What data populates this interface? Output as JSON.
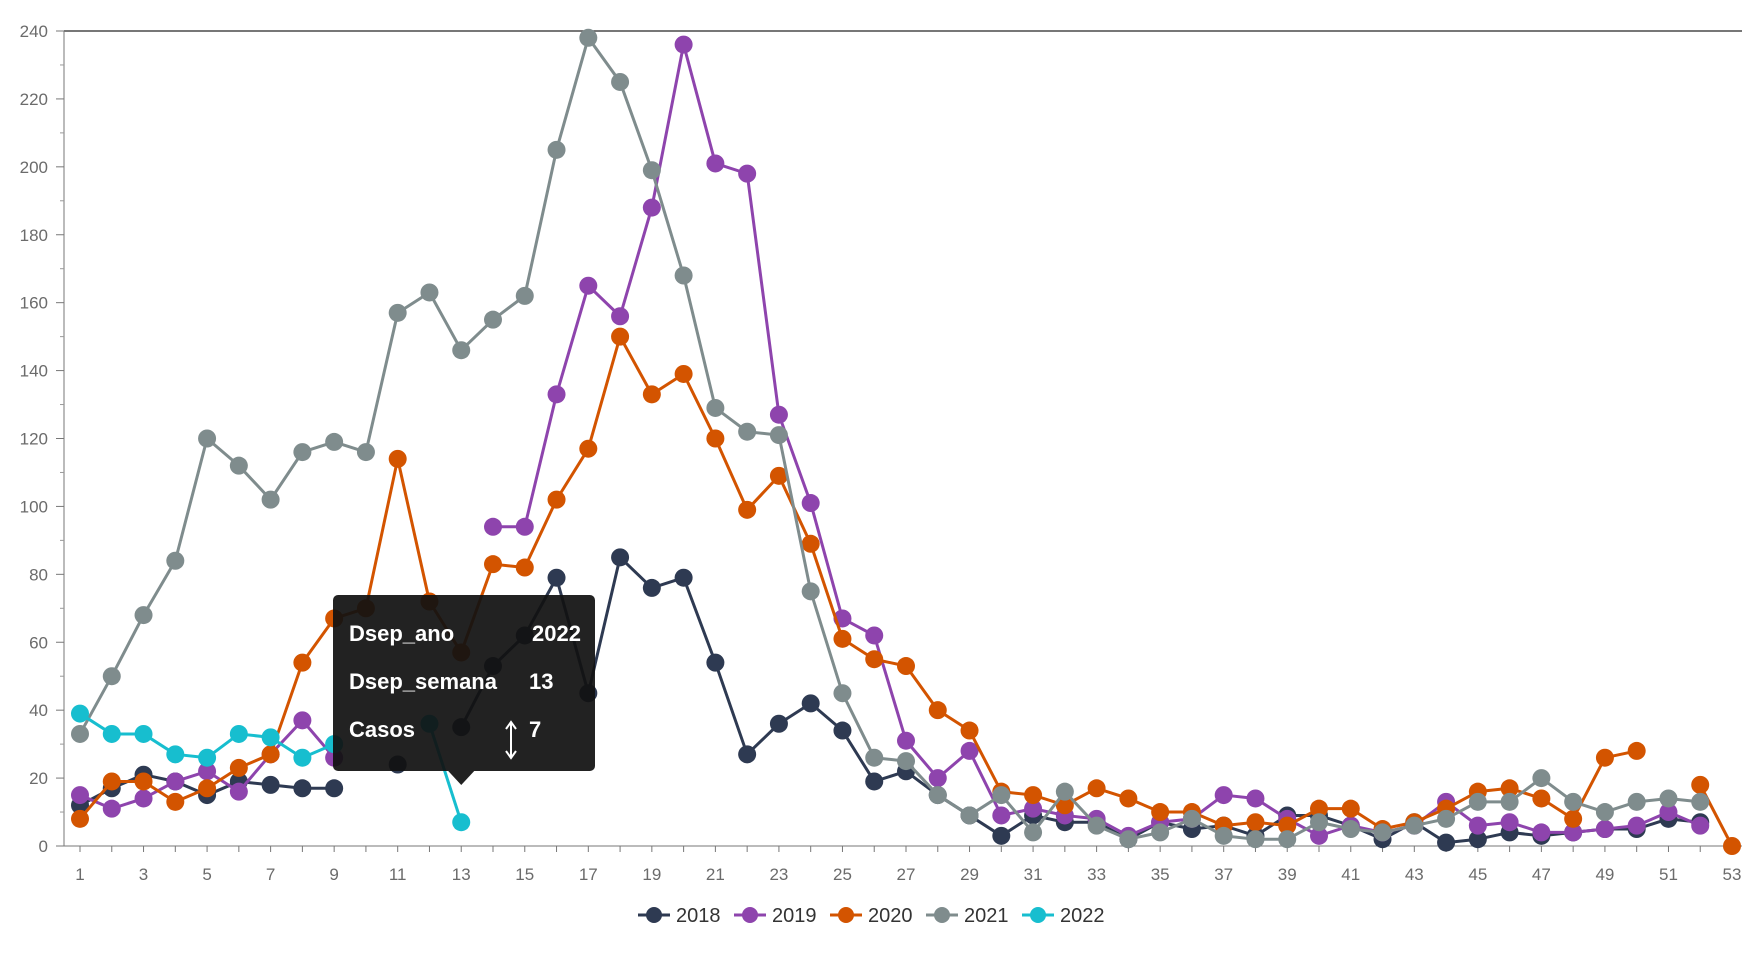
{
  "chart_data": {
    "type": "line",
    "title": "",
    "xlabel": "",
    "ylabel": "",
    "x": [
      1,
      2,
      3,
      4,
      5,
      6,
      7,
      8,
      9,
      10,
      11,
      12,
      13,
      14,
      15,
      16,
      17,
      18,
      19,
      20,
      21,
      22,
      23,
      24,
      25,
      26,
      27,
      28,
      29,
      30,
      31,
      32,
      33,
      34,
      35,
      36,
      37,
      38,
      39,
      40,
      41,
      42,
      43,
      44,
      45,
      46,
      47,
      48,
      49,
      50,
      51,
      52,
      53
    ],
    "x_tick_labels": [
      "1",
      "3",
      "5",
      "7",
      "9",
      "11",
      "13",
      "15",
      "17",
      "19",
      "21",
      "23",
      "25",
      "27",
      "29",
      "31",
      "33",
      "35",
      "37",
      "39",
      "41",
      "43",
      "45",
      "47",
      "49",
      "51",
      "53"
    ],
    "xlim": [
      1,
      53
    ],
    "ylim": [
      0,
      240
    ],
    "y_ticks": [
      0,
      20,
      40,
      60,
      80,
      100,
      120,
      140,
      160,
      180,
      200,
      220,
      240
    ],
    "grid": false,
    "legend_position": "bottom-center",
    "series": [
      {
        "name": "2018",
        "color": "#2e3a52",
        "values": [
          12,
          17,
          21,
          19,
          15,
          19,
          18,
          17,
          17,
          null,
          24,
          null,
          35,
          53,
          62,
          79,
          45,
          85,
          76,
          79,
          54,
          27,
          36,
          42,
          34,
          19,
          22,
          15,
          9,
          3,
          9,
          7,
          7,
          2,
          7,
          5,
          6,
          3,
          9,
          9,
          6,
          2,
          7,
          1,
          2,
          4,
          3,
          4,
          5,
          5,
          8,
          7,
          null
        ]
      },
      {
        "name": "2019",
        "color": "#8e44ad",
        "values": [
          15,
          11,
          14,
          19,
          22,
          16,
          27,
          37,
          26,
          null,
          null,
          null,
          null,
          94,
          94,
          133,
          165,
          156,
          188,
          236,
          201,
          198,
          127,
          101,
          67,
          62,
          31,
          20,
          28,
          9,
          11,
          9,
          8,
          3,
          7,
          8,
          15,
          14,
          8,
          3,
          6,
          4,
          6,
          13,
          6,
          7,
          4,
          4,
          5,
          6,
          10,
          6,
          null
        ]
      },
      {
        "name": "2020",
        "color": "#d35400",
        "values": [
          8,
          19,
          19,
          13,
          17,
          23,
          27,
          54,
          67,
          70,
          114,
          72,
          57,
          83,
          82,
          102,
          117,
          150,
          133,
          139,
          120,
          99,
          109,
          89,
          61,
          55,
          53,
          40,
          34,
          16,
          15,
          12,
          17,
          14,
          10,
          10,
          6,
          7,
          6,
          11,
          11,
          5,
          7,
          11,
          16,
          17,
          14,
          8,
          26,
          28,
          null,
          18,
          0
        ]
      },
      {
        "name": "2021",
        "color": "#7f8c8d",
        "values": [
          33,
          50,
          68,
          84,
          120,
          112,
          102,
          116,
          119,
          116,
          157,
          163,
          146,
          155,
          162,
          205,
          238,
          225,
          199,
          168,
          129,
          122,
          121,
          75,
          45,
          26,
          25,
          15,
          9,
          15,
          4,
          16,
          6,
          2,
          4,
          8,
          3,
          2,
          2,
          7,
          5,
          4,
          6,
          8,
          13,
          13,
          20,
          13,
          10,
          13,
          14,
          13,
          null
        ]
      },
      {
        "name": "2022",
        "color": "#17becf",
        "values": [
          39,
          33,
          33,
          27,
          26,
          33,
          32,
          26,
          30,
          null,
          null,
          36,
          7,
          null,
          null,
          null,
          null,
          null,
          null,
          null,
          null,
          null,
          null,
          null,
          null,
          null,
          null,
          null,
          null,
          null,
          null,
          null,
          null,
          null,
          null,
          null,
          null,
          null,
          null,
          null,
          null,
          null,
          null,
          null,
          null,
          null,
          null,
          null,
          null,
          null,
          null,
          null,
          null
        ]
      }
    ]
  },
  "tooltip": {
    "rows": [
      {
        "label": "Dsep_ano",
        "value": "2022"
      },
      {
        "label": "Dsep_semana",
        "value": "13"
      },
      {
        "label": "Casos",
        "value": "7"
      }
    ],
    "point": {
      "series": "2022",
      "x": 13,
      "y": 7
    }
  }
}
